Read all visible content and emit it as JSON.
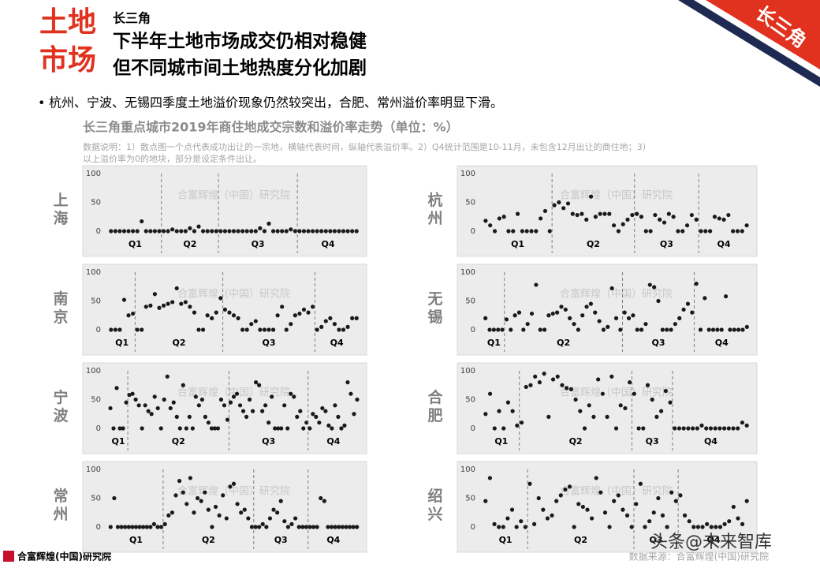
{
  "header": {
    "tag_lines": [
      "土地",
      "市场"
    ],
    "region": "长三角",
    "title_lines": [
      "下半年土地市场成交仍相对稳健",
      "但不同城市间土地热度分化加剧"
    ],
    "badge": "长三角"
  },
  "bullet": "杭州、宁波、无锡四季度土地溢价现象仍然较突出，合肥、常州溢价率明显下滑。",
  "figure_title": "长三角重点城市2019年商住地成交宗数和溢价率走势（单位：%）",
  "note_lines": [
    "数据说明：1）散点图一个点代表成功出让的一宗地，横轴代表时间，纵轴代表溢价率。2）Q4统计范围是10-11月，未包含12月出让的商住地；3）",
    "以上溢价率为0的地块，部分是设定条件出让。"
  ],
  "watermark": "合富辉煌（中国）研究院",
  "source": "数据来源：合富辉煌(中国)研究院",
  "logo": "合富辉煌(中国)研究院",
  "overlay": "头条@未来智库",
  "chart_data": [
    {
      "type": "scatter",
      "city": "上海",
      "color": "#1a1a1a",
      "ylim": [
        0,
        100
      ],
      "yticks": [
        0,
        50,
        100
      ],
      "categories": [
        "Q1",
        "Q2",
        "Q3",
        "Q4"
      ],
      "values": [
        [
          0,
          0,
          0,
          0,
          0,
          0,
          0,
          17,
          0,
          0,
          0,
          0
        ],
        [
          0,
          0,
          3,
          0,
          0,
          0,
          5,
          0,
          8,
          0,
          0,
          0,
          0
        ],
        [
          0,
          0,
          0,
          0,
          0,
          0,
          0,
          0,
          0,
          5,
          0,
          13,
          0,
          0,
          0,
          0,
          3,
          0
        ],
        [
          0,
          0,
          0,
          0,
          0,
          0,
          0,
          0,
          0,
          0,
          0,
          0,
          0,
          0
        ]
      ]
    },
    {
      "type": "scatter",
      "city": "杭州",
      "color": "#1a1a1a",
      "ylim": [
        0,
        100
      ],
      "yticks": [
        0,
        50,
        100
      ],
      "categories": [
        "Q1",
        "Q2",
        "Q3",
        "Q4"
      ],
      "values": [
        [
          18,
          10,
          0,
          22,
          25,
          0,
          0,
          30,
          0,
          0,
          0,
          0,
          22,
          35,
          0
        ],
        [
          45,
          50,
          40,
          48,
          30,
          28,
          30,
          20,
          60,
          25,
          30,
          30,
          30,
          10,
          0,
          12,
          20,
          28
        ],
        [
          30,
          25,
          0,
          0,
          28,
          20,
          15,
          30,
          25,
          0,
          0,
          10,
          28,
          20
        ],
        [
          0,
          0,
          0,
          25,
          22,
          20,
          28,
          0,
          0,
          0,
          10
        ]
      ]
    },
    {
      "type": "scatter",
      "city": "南京",
      "color": "#1a1a1a",
      "ylim": [
        0,
        100
      ],
      "yticks": [
        0,
        50,
        100
      ],
      "categories": [
        "Q1",
        "Q2",
        "Q3",
        "Q4"
      ],
      "values": [
        [
          0,
          0,
          0,
          52,
          25,
          28
        ],
        [
          0,
          0,
          40,
          42,
          62,
          38,
          42,
          45,
          48,
          72,
          45,
          48,
          40,
          30,
          0,
          0,
          25,
          20,
          30,
          55
        ],
        [
          35,
          30,
          25,
          20,
          0,
          0,
          10,
          15,
          0,
          0,
          0,
          0,
          25,
          40,
          0,
          10,
          25,
          28,
          35,
          30,
          40
        ],
        [
          0,
          5,
          15,
          20,
          10,
          0,
          0,
          5,
          20,
          20
        ]
      ]
    },
    {
      "type": "scatter",
      "city": "无锡",
      "color": "#1a1a1a",
      "ylim": [
        0,
        100
      ],
      "yticks": [
        0,
        50,
        100
      ],
      "categories": [
        "Q1",
        "Q2",
        "Q3",
        "Q4"
      ],
      "values": [
        [
          20,
          0,
          0,
          0,
          0
        ],
        [
          18,
          0,
          25,
          30,
          0,
          10,
          28,
          78,
          0,
          0,
          25,
          28,
          30,
          40,
          35,
          20,
          10,
          0,
          25,
          40,
          45,
          30,
          15,
          0,
          5,
          72,
          20,
          0
        ],
        [
          30,
          20,
          25,
          0,
          0,
          10,
          78,
          74,
          50,
          0,
          0,
          0,
          10,
          20,
          35,
          45,
          30
        ],
        [
          80,
          0,
          55,
          0,
          0,
          0,
          0,
          58,
          0,
          0,
          0,
          0,
          5
        ]
      ]
    },
    {
      "type": "scatter",
      "city": "宁波",
      "color": "#1a1a1a",
      "ylim": [
        0,
        100
      ],
      "yticks": [
        0,
        50,
        100
      ],
      "categories": [
        "Q1",
        "Q2",
        "Q3",
        "Q4"
      ],
      "values": [
        [
          35,
          0,
          70,
          0,
          0,
          45
        ],
        [
          58,
          60,
          50,
          40,
          0,
          40,
          30,
          25,
          55,
          35,
          0,
          50,
          90,
          35,
          45,
          20,
          0,
          75,
          0,
          20,
          0,
          55,
          40,
          50,
          20,
          10,
          0,
          0,
          0,
          50,
          40,
          15
        ],
        [
          45,
          55,
          60,
          40,
          30,
          20,
          50,
          30,
          80,
          75,
          30,
          40,
          10,
          55,
          0,
          0,
          0,
          40,
          0,
          60,
          55,
          20,
          30,
          0,
          10
        ],
        [
          0,
          25,
          20,
          10,
          35,
          30,
          5,
          0,
          40,
          20,
          0,
          5,
          80,
          60,
          25,
          50
        ]
      ]
    },
    {
      "type": "scatter",
      "city": "合肥",
      "color": "#1a1a1a",
      "ylim": [
        0,
        100
      ],
      "yticks": [
        0,
        50,
        100
      ],
      "categories": [
        "Q1",
        "Q2",
        "Q3",
        "Q4"
      ],
      "values": [
        [
          25,
          60,
          0,
          30,
          0,
          45,
          30,
          5
        ],
        [
          10,
          72,
          75,
          90,
          80,
          95,
          20,
          85,
          90,
          75,
          70,
          68,
          50,
          30,
          0,
          40,
          20,
          85,
          60,
          20,
          90,
          0,
          40,
          35,
          80
        ],
        [
          60,
          0,
          0,
          75,
          50,
          20,
          30,
          65,
          45
        ],
        [
          0,
          0,
          0,
          0,
          0,
          0,
          5,
          0,
          0,
          0,
          0,
          0,
          0,
          0,
          0,
          10,
          5
        ]
      ]
    },
    {
      "type": "scatter",
      "city": "常州",
      "color": "#1a1a1a",
      "ylim": [
        0,
        100
      ],
      "yticks": [
        0,
        50,
        100
      ],
      "categories": [
        "Q1",
        "Q2",
        "Q3",
        "Q4"
      ],
      "values": [
        [
          0,
          50,
          0,
          0,
          0,
          0,
          0,
          0,
          0,
          0,
          0,
          0,
          5,
          0,
          0
        ],
        [
          5,
          20,
          25,
          55,
          80,
          60,
          40,
          85,
          25,
          50,
          45,
          60,
          30,
          0,
          35,
          20,
          55,
          15,
          70,
          75,
          40,
          25,
          30,
          15,
          0
        ],
        [
          0,
          0,
          5,
          0,
          15,
          30,
          25,
          45,
          10,
          0,
          5,
          15,
          0,
          0,
          0
        ],
        [
          0,
          0,
          0,
          50,
          45,
          0,
          0,
          0,
          0,
          0,
          0,
          0,
          0,
          0
        ]
      ]
    },
    {
      "type": "scatter",
      "city": "绍兴",
      "color": "#1a1a1a",
      "ylim": [
        0,
        100
      ],
      "yticks": [
        0,
        50,
        100
      ],
      "categories": [
        "Q1",
        "Q2",
        "Q3",
        "Q4"
      ],
      "values": [
        [
          45,
          85,
          5,
          0,
          0,
          15,
          30,
          0,
          10,
          0
        ],
        [
          75,
          5,
          50,
          30,
          15,
          20,
          45,
          55,
          65,
          70,
          0,
          40,
          35,
          30,
          15,
          85,
          60,
          25,
          0,
          45,
          55,
          30,
          20,
          0
        ],
        [
          40,
          75,
          0,
          10,
          25,
          50,
          20,
          0,
          60,
          45
        ],
        [
          55,
          20,
          10,
          0,
          0,
          0,
          5,
          0,
          0,
          0,
          5,
          10,
          35,
          15,
          5,
          45
        ]
      ]
    }
  ]
}
